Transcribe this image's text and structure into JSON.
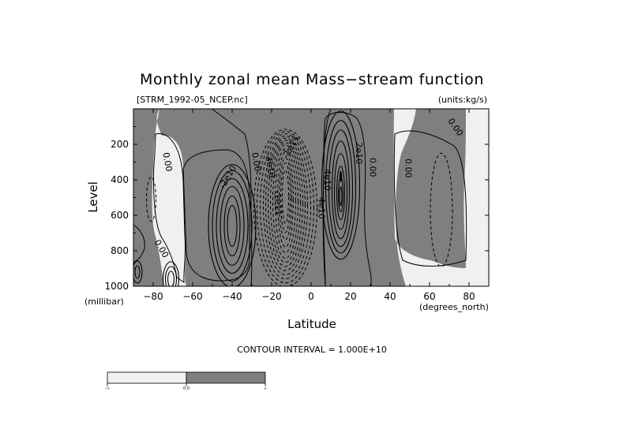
{
  "chart_data": {
    "type": "contour",
    "title": "Monthly zonal mean Mass−stream function",
    "file_label": "[STRM_1992-05_NCEP.nc]",
    "units_label": "(units:kg/s)",
    "xlabel": "Latitude",
    "x_unit": "(degrees_north)",
    "ylabel": "Level",
    "y_unit": "(millibar)",
    "xlim": [
      -90,
      90
    ],
    "ylim": [
      1000,
      0
    ],
    "x_ticks": [
      -80,
      -60,
      -40,
      -20,
      0,
      20,
      40,
      60,
      80
    ],
    "y_ticks": [
      200,
      400,
      600,
      800,
      1000
    ],
    "contour_interval_text": "CONTOUR INTERVAL = 1.000E+10",
    "contour_interval": 10000000000.0,
    "colors": {
      "negative_fill": "#f0f0f0",
      "positive_fill": "#7f7f7f",
      "line": "#000000"
    },
    "shade_bar": {
      "labels": [
        "-∞",
        "0.0",
        "∞"
      ]
    },
    "contour_labels": [
      {
        "text": "0.00",
        "lat": -73,
        "lev": 300,
        "angle": 80
      },
      {
        "text": "-2e10",
        "lat": -42,
        "lev": 385,
        "angle": -60
      },
      {
        "text": "0.00",
        "lat": -28,
        "lev": 300,
        "angle": 80
      },
      {
        "text": "-1e11",
        "lat": -17,
        "lev": 530,
        "angle": 85
      },
      {
        "text": "-1e11",
        "lat": -10,
        "lev": 215,
        "angle": -60
      },
      {
        "text": "-4e10",
        "lat": -21,
        "lev": 320,
        "angle": 80
      },
      {
        "text": "4e10",
        "lat": 8,
        "lev": 400,
        "angle": 90
      },
      {
        "text": "2e10",
        "lat": 24,
        "lev": 250,
        "angle": 90
      },
      {
        "text": "0.00",
        "lat": 31,
        "lev": 330,
        "angle": 90
      },
      {
        "text": "0.00",
        "lat": 49,
        "lev": 335,
        "angle": 90
      },
      {
        "text": "0.00",
        "lat": 73,
        "lev": 105,
        "angle": 55
      },
      {
        "text": "0.00",
        "lat": -76,
        "lev": 790,
        "angle": 60
      },
      {
        "text": "4e10",
        "lat": 5,
        "lev": 560,
        "angle": 90
      }
    ]
  }
}
